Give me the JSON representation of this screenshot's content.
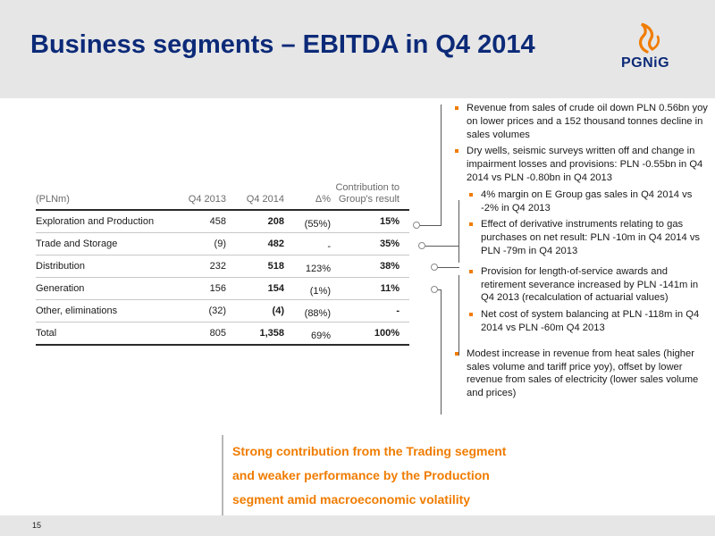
{
  "header": {
    "title": "Business segments – EBITDA in Q4 2014",
    "logo_text": "PGNiG"
  },
  "table": {
    "headers": {
      "label": "(PLNm)",
      "q4_2013": "Q4 2013",
      "q4_2014": "Q4 2014",
      "delta": "Δ%",
      "contribution": "Contribution to Group's result"
    },
    "rows": [
      {
        "label": "Exploration and Production",
        "q4_2013": "458",
        "q4_2014": "208",
        "delta": "(55%)",
        "contribution": "15%"
      },
      {
        "label": "Trade and Storage",
        "q4_2013": "(9)",
        "q4_2014": "482",
        "delta": "-",
        "contribution": "35%"
      },
      {
        "label": "Distribution",
        "q4_2013": "232",
        "q4_2014": "518",
        "delta": "123%",
        "contribution": "38%"
      },
      {
        "label": "Generation",
        "q4_2013": "156",
        "q4_2014": "154",
        "delta": "(1%)",
        "contribution": "11%"
      },
      {
        "label": "Other, eliminations",
        "q4_2013": "(32)",
        "q4_2014": "(4)",
        "delta": "(88%)",
        "contribution": "-"
      },
      {
        "label": "Total",
        "q4_2013": "805",
        "q4_2014": "1,358",
        "delta": "69%",
        "contribution": "100%"
      }
    ]
  },
  "notes": {
    "exploration": [
      "Revenue from sales of crude oil down PLN 0.56bn yoy on lower prices and a 152 thousand tonnes decline in sales volumes",
      "Dry wells, seismic surveys written off and change in impairment losses and provisions: PLN -0.55bn in Q4 2014 vs PLN -0.80bn in Q4 2013"
    ],
    "trade": [
      "4% margin on E Group gas sales in Q4 2014 vs -2% in Q4 2013",
      "Effect of derivative instruments relating to gas purchases on net result: PLN -10m in Q4 2014 vs PLN -79m in Q4 2013"
    ],
    "distribution": [
      "Provision for length-of-service awards and retirement severance increased by PLN -141m in Q4 2013 (recalculation of actuarial values)",
      "Net cost of system balancing at PLN -118m in Q4 2014 vs PLN -60m Q4 2013"
    ],
    "generation": [
      "Modest increase in revenue from heat sales (higher sales volume and tariff price yoy), offset by lower revenue from sales of electricity (lower sales volume and prices)"
    ]
  },
  "conclusion": [
    "Strong contribution from the Trading segment",
    "and weaker performance by the Production",
    "segment amid macroeconomic volatility"
  ],
  "footer": {
    "page_number": "15"
  },
  "colors": {
    "title": "#0c2a78",
    "accent": "#f07c00",
    "header_bg": "#e6e6e6"
  }
}
